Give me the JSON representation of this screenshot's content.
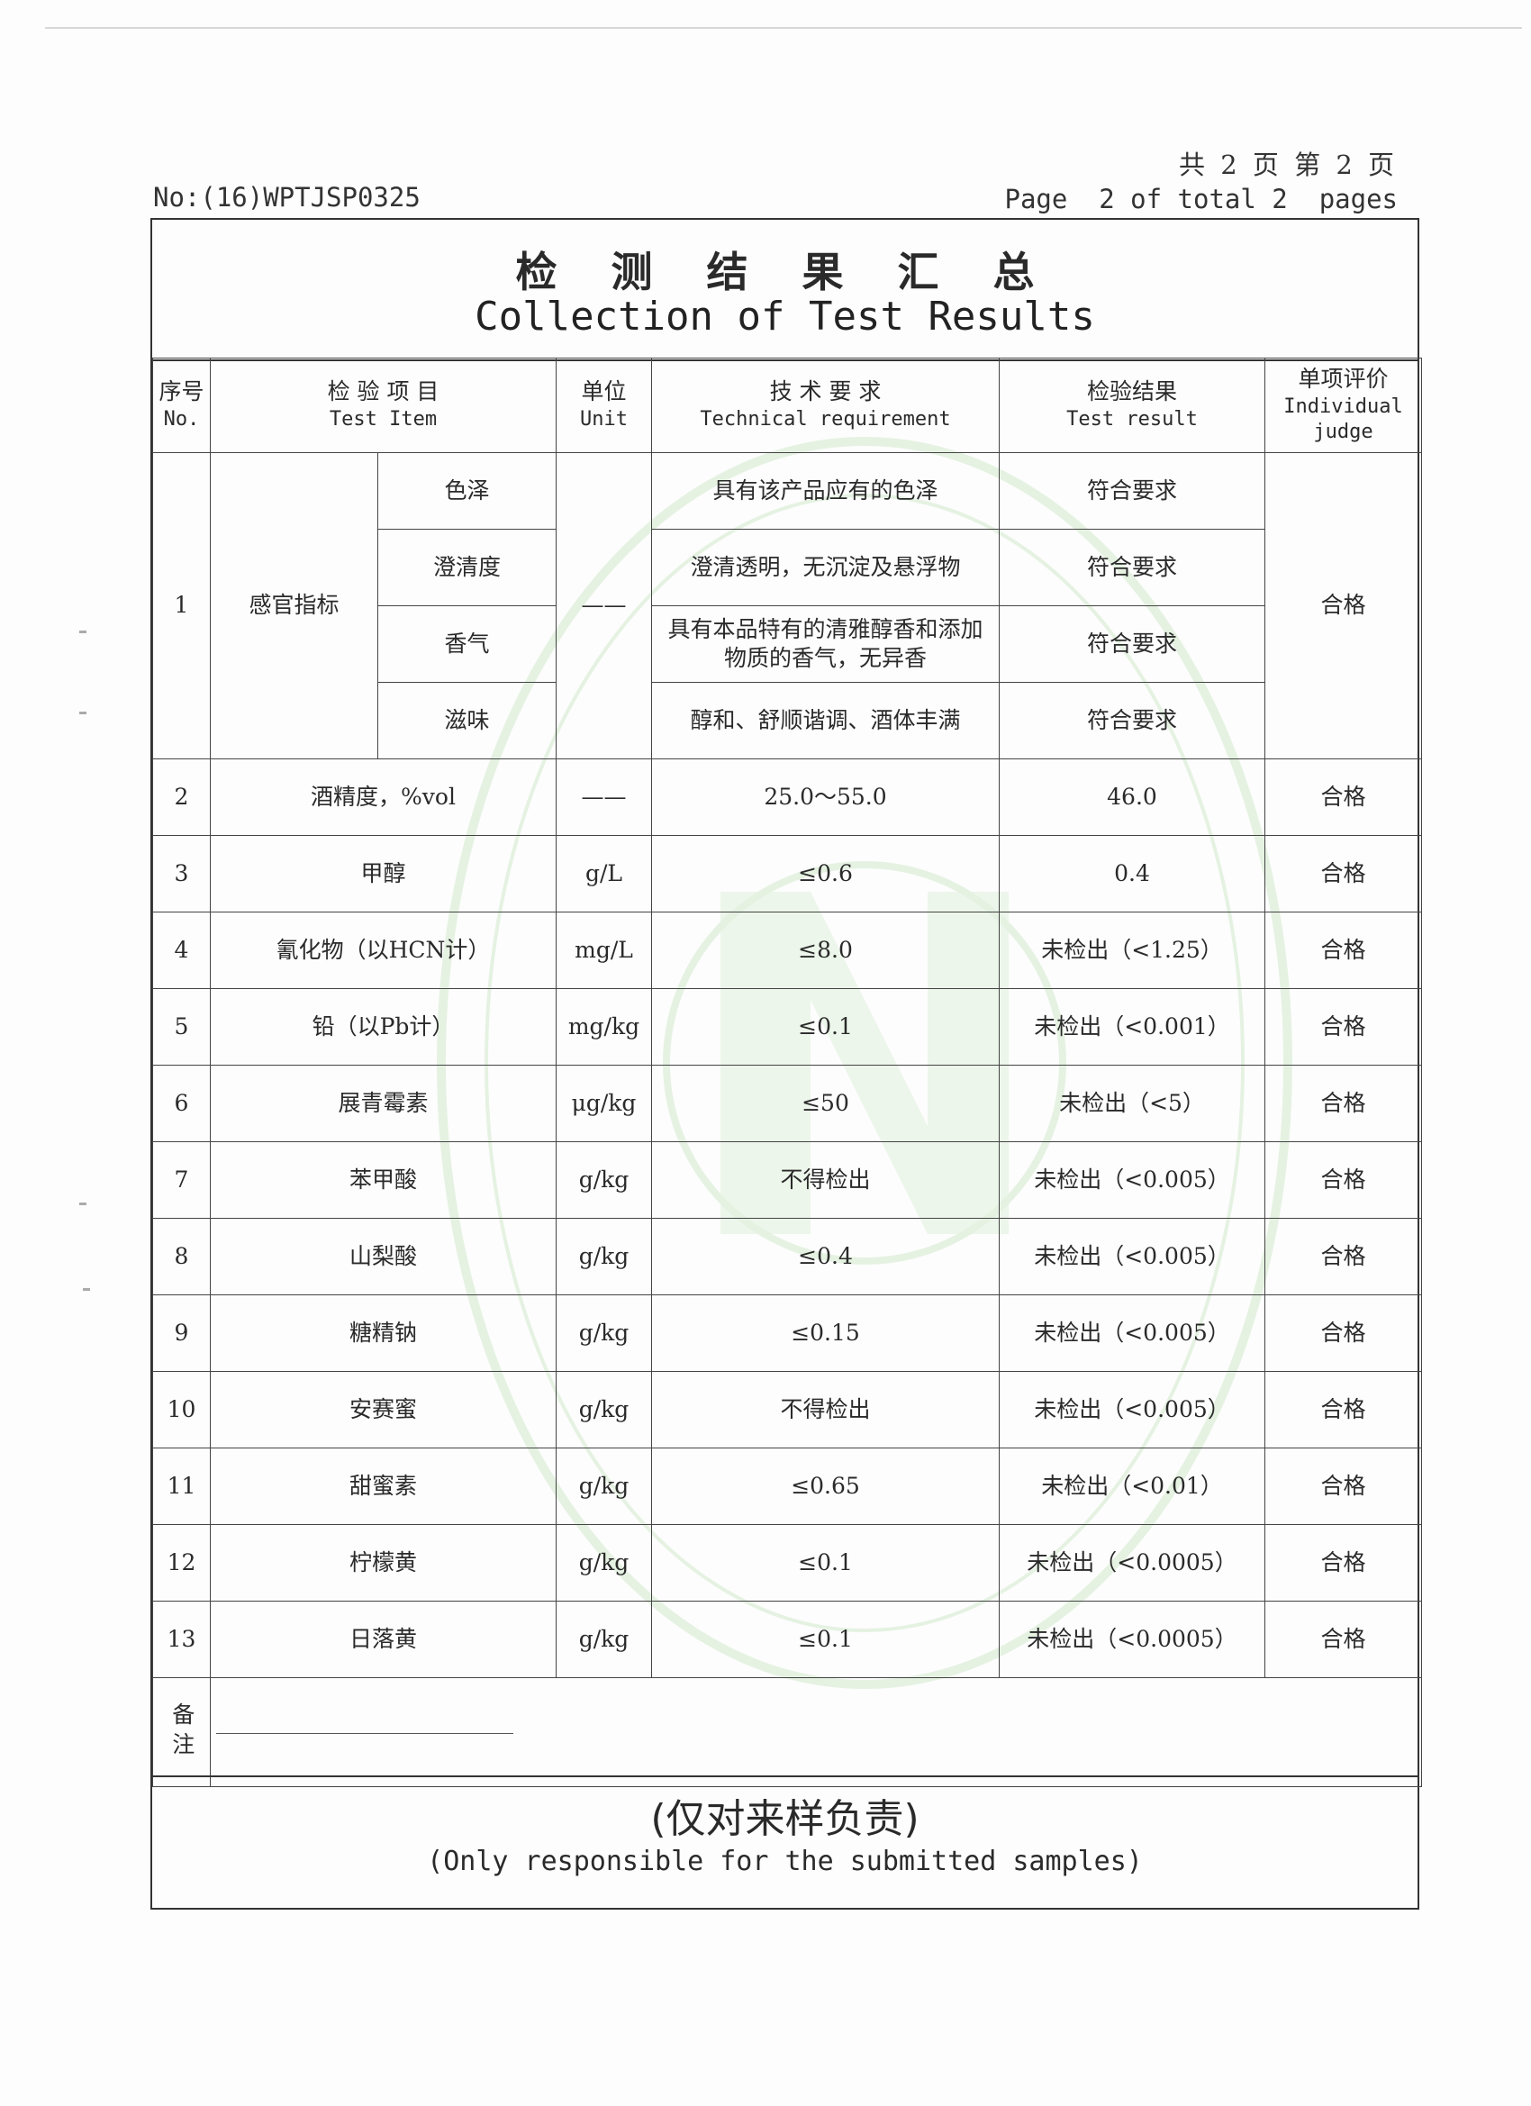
{
  "header": {
    "pages_cn": "共 2 页 第 2 页",
    "pages_en": "Page  2 of total 2  pages",
    "report_no": "No:(16)WPTJSP0325"
  },
  "title": {
    "cn": "检 测 结 果 汇 总",
    "en": "Collection of Test Results"
  },
  "columns": {
    "no_cn": "序号",
    "no_en": "No.",
    "item_cn": "检 验 项 目",
    "item_en": "Test Item",
    "unit_cn": "单位",
    "unit_en": "Unit",
    "req_cn": "技   术   要   求",
    "req_en": "Technical requirement",
    "result_cn": "检验结果",
    "result_en": "Test result",
    "judge_cn": "单项评价",
    "judge_en": "Individual judge"
  },
  "sensory": {
    "no": "1",
    "group": "感官指标",
    "unit": "——",
    "judge": "合格",
    "rows": [
      {
        "item": "色泽",
        "requirement": "具有该产品应有的色泽",
        "result": "符合要求"
      },
      {
        "item": "澄清度",
        "requirement": "澄清透明，无沉淀及悬浮物",
        "result": "符合要求"
      },
      {
        "item": "香气",
        "requirement": "具有本品特有的清雅醇香和添加物质的香气，无异香",
        "result": "符合要求"
      },
      {
        "item": "滋味",
        "requirement": "醇和、舒顺谐调、酒体丰满",
        "result": "符合要求"
      }
    ]
  },
  "rows": [
    {
      "no": "2",
      "item": "酒精度，%vol",
      "unit": "——",
      "requirement": "25.0～55.0",
      "result": "46.0",
      "judge": "合格"
    },
    {
      "no": "3",
      "item": "甲醇",
      "unit": "g/L",
      "requirement": "≤0.6",
      "result": "0.4",
      "judge": "合格"
    },
    {
      "no": "4",
      "item": "氰化物（以HCN计）",
      "unit": "mg/L",
      "requirement": "≤8.0",
      "result": "未检出（<1.25）",
      "judge": "合格"
    },
    {
      "no": "5",
      "item": "铅（以Pb计）",
      "unit": "mg/kg",
      "requirement": "≤0.1",
      "result": "未检出（<0.001）",
      "judge": "合格"
    },
    {
      "no": "6",
      "item": "展青霉素",
      "unit": "μg/kg",
      "requirement": "≤50",
      "result": "未检出（<5）",
      "judge": "合格"
    },
    {
      "no": "7",
      "item": "苯甲酸",
      "unit": "g/kg",
      "requirement": "不得检出",
      "result": "未检出（<0.005）",
      "judge": "合格"
    },
    {
      "no": "8",
      "item": "山梨酸",
      "unit": "g/kg",
      "requirement": "≤0.4",
      "result": "未检出（<0.005）",
      "judge": "合格"
    },
    {
      "no": "9",
      "item": "糖精钠",
      "unit": "g/kg",
      "requirement": "≤0.15",
      "result": "未检出（<0.005）",
      "judge": "合格"
    },
    {
      "no": "10",
      "item": "安赛蜜",
      "unit": "g/kg",
      "requirement": "不得检出",
      "result": "未检出（<0.005）",
      "judge": "合格"
    },
    {
      "no": "11",
      "item": "甜蜜素",
      "unit": "g/kg",
      "requirement": "≤0.65",
      "result": "未检出（<0.01）",
      "judge": "合格"
    },
    {
      "no": "12",
      "item": "柠檬黄",
      "unit": "g/kg",
      "requirement": "≤0.1",
      "result": "未检出（<0.0005）",
      "judge": "合格"
    },
    {
      "no": "13",
      "item": "日落黄",
      "unit": "g/kg",
      "requirement": "≤0.1",
      "result": "未检出（<0.0005）",
      "judge": "合格"
    }
  ],
  "remarks": {
    "label": "备注"
  },
  "footer": {
    "cn": "(仅对来样负责)",
    "en": "(Only responsible for the submitted samples)"
  },
  "colors": {
    "ink": "#2a2a2a",
    "stamp": "#6bbf59"
  }
}
